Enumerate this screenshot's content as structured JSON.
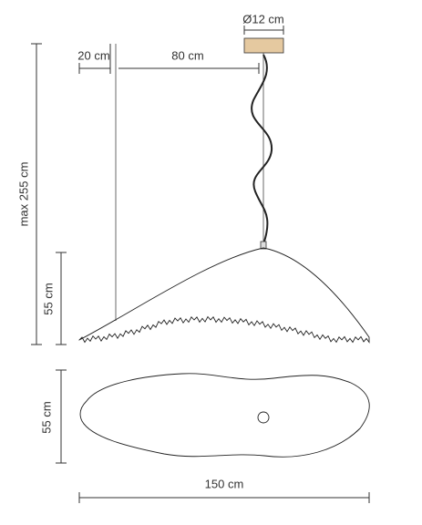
{
  "dimensions": {
    "canopy_diameter": "Ø12 cm",
    "offset": "20 cm",
    "cable_offset": "80 cm",
    "max_height": "max 255 cm",
    "shade_height": "55 cm",
    "shade_depth": "55 cm",
    "shade_width": "150 cm"
  }
}
